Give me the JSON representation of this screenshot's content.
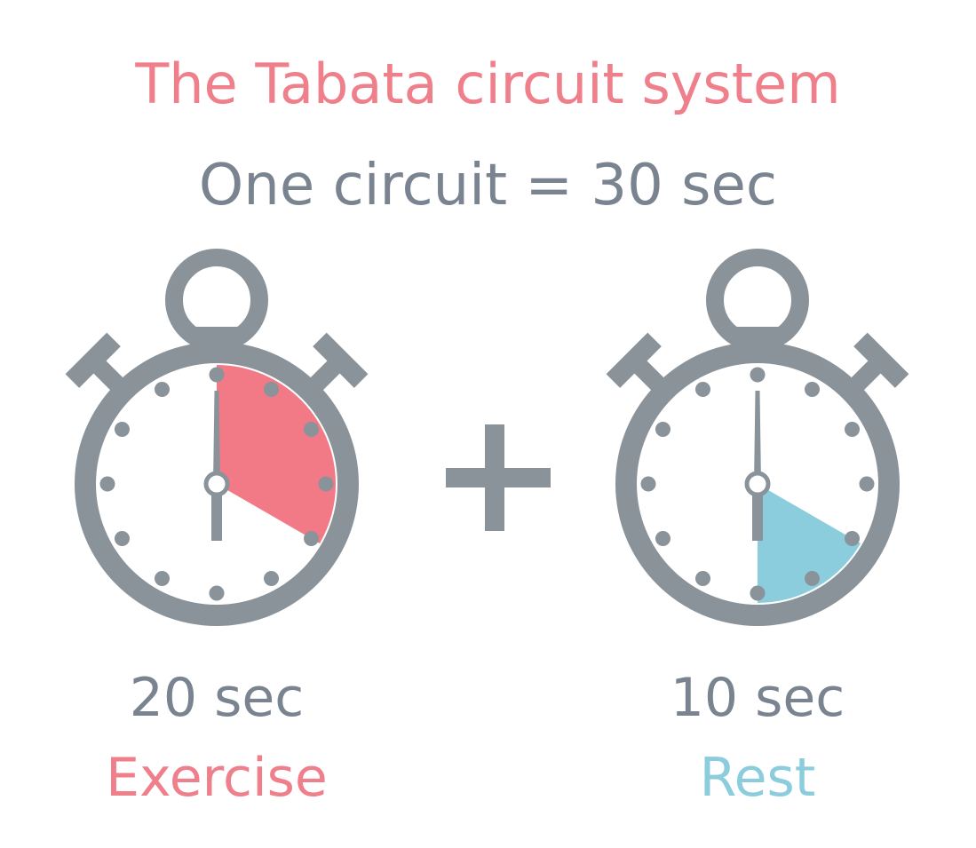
{
  "title": "The Tabata circuit system",
  "subtitle": "One circuit = 30 sec",
  "operator": "+",
  "timers": [
    {
      "duration_label": "20 sec",
      "activity_label": "Exercise",
      "seconds": 20,
      "minute_hand_sec": 0,
      "second_hand_sec": 20,
      "fill_color": "#f27a86",
      "label_color": "#ef7f8a"
    },
    {
      "duration_label": "10 sec",
      "activity_label": "Rest",
      "seconds": 10,
      "minute_hand_sec": 0,
      "second_hand_sec": 0,
      "fill_color": "#8bcddd",
      "label_color": "#8bcddd"
    }
  ],
  "colors": {
    "body": "#8a929a",
    "ticks": "#8a929a",
    "hands": "#8a929a",
    "operator": "#8a929a"
  },
  "icons": [
    "stopwatch-icon",
    "plus-icon"
  ]
}
